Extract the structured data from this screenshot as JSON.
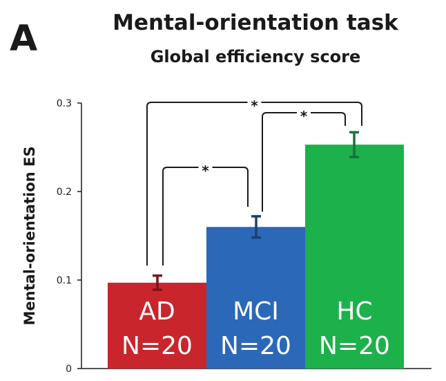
{
  "panel_label": "A",
  "chart_data": {
    "type": "bar",
    "title": "Mental-orientation task",
    "subtitle": "Global efficiency score",
    "ylabel": "Mental-orientation ES",
    "xlabel": "",
    "ylim": [
      0,
      0.3
    ],
    "yticks": [
      "0",
      "0.1",
      "0.2",
      "0.3"
    ],
    "categories": [
      "AD",
      "MCI",
      "HC"
    ],
    "sublabels": [
      "N=20",
      "N=20",
      "N=20"
    ],
    "values": [
      0.097,
      0.16,
      0.253
    ],
    "errors": [
      0.008,
      0.012,
      0.014
    ],
    "colors": [
      "#c9252c",
      "#2b68b8",
      "#1db14b"
    ],
    "errorbar_colors": [
      "#7a1418",
      "#1a3f73",
      "#16723a"
    ],
    "significance": [
      {
        "from": "AD",
        "to": "MCI",
        "label": "*"
      },
      {
        "from": "MCI",
        "to": "HC",
        "label": "*"
      },
      {
        "from": "AD",
        "to": "HC",
        "label": "*"
      }
    ]
  }
}
